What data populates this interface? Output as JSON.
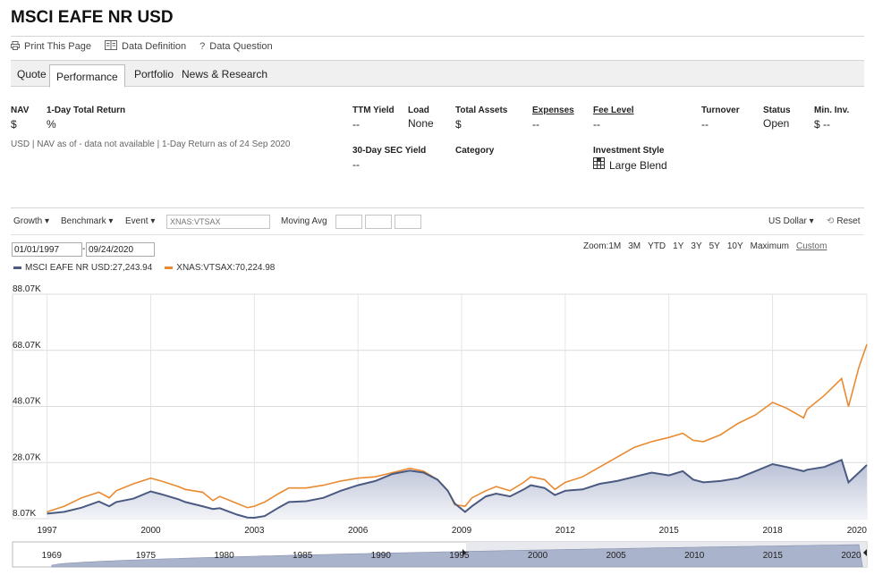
{
  "page": {
    "title": "MSCI EAFE NR USD"
  },
  "toolbar": {
    "print": "Print This Page",
    "definition": "Data Definition",
    "question": "Data Question"
  },
  "tabs": [
    "Quote",
    "Performance",
    "Portfolio",
    "News & Research"
  ],
  "summary": {
    "nav_label": "NAV",
    "nav_value": "$",
    "day_return_label": "1-Day Total Return",
    "day_return_value": "%",
    "ttm_label": "TTM Yield",
    "ttm_value": "--",
    "load_label": "Load",
    "load_value": "None",
    "assets_label": "Total Assets",
    "assets_value": "$",
    "expenses_label": "Expenses",
    "expenses_value": "--",
    "fee_label": "Fee Level",
    "fee_value": "--",
    "turnover_label": "Turnover",
    "turnover_value": "--",
    "status_label": "Status",
    "status_value": "Open",
    "mininv_label": "Min. Inv.",
    "mininv_value": "$ --",
    "asof_note": "USD | NAV as of - data not available | 1-Day Return as of 24 Sep 2020",
    "sec_label": "30-Day SEC Yield",
    "sec_value": "--",
    "category_label": "Category",
    "style_label": "Investment Style",
    "style_value": "Large Blend"
  },
  "controls": {
    "growth": "Growth ▾",
    "benchmark": "Benchmark ▾",
    "event": "Event ▾",
    "compare_placeholder": "XNAS:VTSAX",
    "moving_avg": "Moving Avg",
    "currency": "US Dollar ▾",
    "reset": "Reset",
    "start_date": "01/01/1997",
    "end_date": "09/24/2020",
    "date_sep": "-"
  },
  "zoom": {
    "label": "Zoom:",
    "options": [
      "1M",
      "3M",
      "YTD",
      "1Y",
      "3Y",
      "5Y",
      "10Y",
      "Maximum",
      "Custom"
    ]
  },
  "colors": {
    "index": "#4a5a80",
    "fund": "#ea8a30",
    "fill_top": "#b6bed4",
    "fill_bottom": "#f3f4f8"
  },
  "chart_data": {
    "type": "line",
    "title": "",
    "ytick_labels": [
      "88.07K",
      "68.07K",
      "48.07K",
      "28.07K",
      "8.07K"
    ],
    "yticks": [
      88070,
      68070,
      48070,
      28070,
      8070
    ],
    "ylim": [
      8070,
      88070
    ],
    "xlim": [
      1996.0,
      2020.73
    ],
    "xtick_labels": [
      "1997",
      "2000",
      "2003",
      "2006",
      "2009",
      "2012",
      "2015",
      "2018",
      "2020"
    ],
    "xticks": [
      1997,
      2000,
      2003,
      2006,
      2009,
      2012,
      2015,
      2018,
      2020.73
    ],
    "series": [
      {
        "name": "MSCI EAFE NR USD",
        "legend": "MSCI EAFE NR USD:27,243.94",
        "x": [
          1997.0,
          1997.5,
          1998.0,
          1998.5,
          1998.8,
          1999.0,
          1999.5,
          2000.0,
          2000.3,
          2000.8,
          2001.0,
          2001.5,
          2001.8,
          2002.0,
          2002.5,
          2002.8,
          2003.0,
          2003.3,
          2003.7,
          2004.0,
          2004.5,
          2005.0,
          2005.5,
          2006.0,
          2006.5,
          2007.0,
          2007.5,
          2007.9,
          2008.3,
          2008.6,
          2008.8,
          2009.1,
          2009.3,
          2009.7,
          2010.0,
          2010.4,
          2010.8,
          2011.0,
          2011.4,
          2011.7,
          2012.0,
          2012.5,
          2013.0,
          2013.5,
          2014.0,
          2014.5,
          2015.0,
          2015.4,
          2015.7,
          2016.0,
          2016.5,
          2017.0,
          2017.5,
          2018.0,
          2018.4,
          2018.9,
          2019.0,
          2019.5,
          2020.0,
          2020.2,
          2020.5,
          2020.73
        ],
        "y": [
          9870,
          10500,
          12000,
          14200,
          12500,
          14000,
          15200,
          17800,
          16800,
          15000,
          14000,
          12500,
          11500,
          11800,
          9500,
          8500,
          8400,
          9000,
          12000,
          14000,
          14300,
          15500,
          18000,
          20000,
          21500,
          24000,
          25200,
          24500,
          22000,
          18000,
          13500,
          10500,
          12500,
          16000,
          17000,
          16000,
          18500,
          20000,
          19000,
          16500,
          18000,
          18500,
          20500,
          21500,
          23000,
          24500,
          23500,
          25000,
          22000,
          21000,
          21500,
          22500,
          25000,
          27500,
          26500,
          25000,
          25500,
          26500,
          29000,
          21000,
          24500,
          27200
        ]
      },
      {
        "name": "XNAS:VTSAX",
        "legend": "XNAS:VTSAX:70,224.98",
        "x": [
          1997.0,
          1997.5,
          1998.0,
          1998.5,
          1998.8,
          1999.0,
          1999.5,
          2000.0,
          2000.3,
          2000.8,
          2001.0,
          2001.5,
          2001.8,
          2002.0,
          2002.5,
          2002.8,
          2003.0,
          2003.3,
          2003.7,
          2004.0,
          2004.5,
          2005.0,
          2005.5,
          2006.0,
          2006.5,
          2007.0,
          2007.5,
          2007.9,
          2008.3,
          2008.6,
          2008.8,
          2009.1,
          2009.3,
          2009.7,
          2010.0,
          2010.4,
          2010.8,
          2011.0,
          2011.4,
          2011.7,
          2012.0,
          2012.5,
          2013.0,
          2013.5,
          2014.0,
          2014.5,
          2015.0,
          2015.4,
          2015.7,
          2016.0,
          2016.5,
          2017.0,
          2017.5,
          2018.0,
          2018.4,
          2018.9,
          2019.0,
          2019.5,
          2020.0,
          2020.2,
          2020.5,
          2020.73
        ],
        "y": [
          10500,
          12500,
          15500,
          17500,
          15500,
          18000,
          20500,
          22500,
          21500,
          19500,
          18500,
          17500,
          14500,
          16000,
          13500,
          12000,
          12500,
          14000,
          17000,
          19000,
          19000,
          20000,
          21500,
          22500,
          23000,
          24500,
          26000,
          25000,
          22000,
          18000,
          13000,
          12500,
          15500,
          18000,
          19500,
          18000,
          21000,
          23000,
          22000,
          18500,
          21000,
          23000,
          26500,
          30000,
          33500,
          35500,
          37000,
          38500,
          36000,
          35500,
          38000,
          42000,
          45000,
          49500,
          47500,
          44000,
          47000,
          52000,
          58000,
          48000,
          62000,
          70200
        ]
      }
    ],
    "navigator_labels": [
      "1969",
      "1975",
      "1980",
      "1985",
      "1990",
      "1995",
      "2000",
      "2005",
      "2010",
      "2015",
      "2020"
    ]
  }
}
